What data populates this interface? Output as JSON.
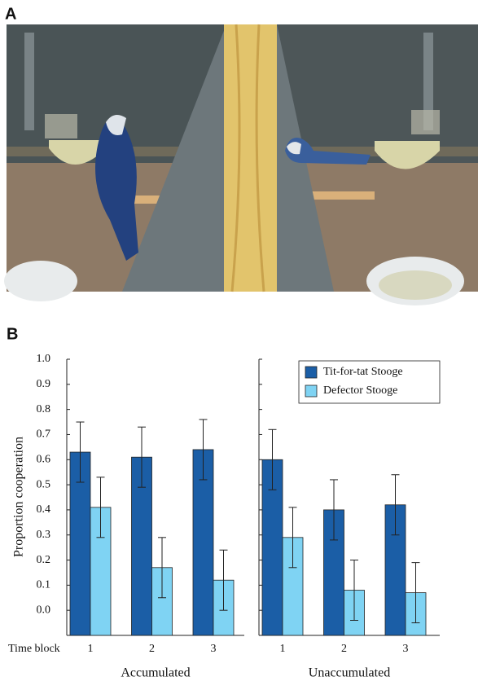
{
  "figure": {
    "labels": [
      "A",
      "B"
    ]
  },
  "chart_data": {
    "type": "bar",
    "y_label": "Proportion cooperation",
    "x_label": "Time block",
    "categories": [
      "1",
      "2",
      "3",
      "1",
      "2",
      "3"
    ],
    "panels": [
      "Accumulated",
      "Unaccumulated"
    ],
    "series": [
      {
        "name": "Tit-for-tat Stooge",
        "color": "#1b5ea6",
        "values": [
          0.63,
          0.61,
          0.64,
          0.6,
          0.4,
          0.42
        ],
        "errors": [
          0.12,
          0.12,
          0.12,
          0.12,
          0.12,
          0.12
        ]
      },
      {
        "name": "Defector Stooge",
        "color": "#7fd3f3",
        "values": [
          0.41,
          0.17,
          0.12,
          0.29,
          0.08,
          0.07
        ],
        "errors": [
          0.12,
          0.12,
          0.12,
          0.12,
          0.12,
          0.12
        ]
      }
    ],
    "ylim": [
      -0.1,
      1.0
    ],
    "yticks": [
      {
        "value": 0,
        "label": "0.0"
      },
      0.1,
      0.2,
      0.3,
      0.4,
      0.5,
      0.6,
      0.7,
      0.8,
      0.9,
      {
        "value": 1,
        "label": "1.0"
      }
    ],
    "legend": "upper right",
    "grid": false
  }
}
